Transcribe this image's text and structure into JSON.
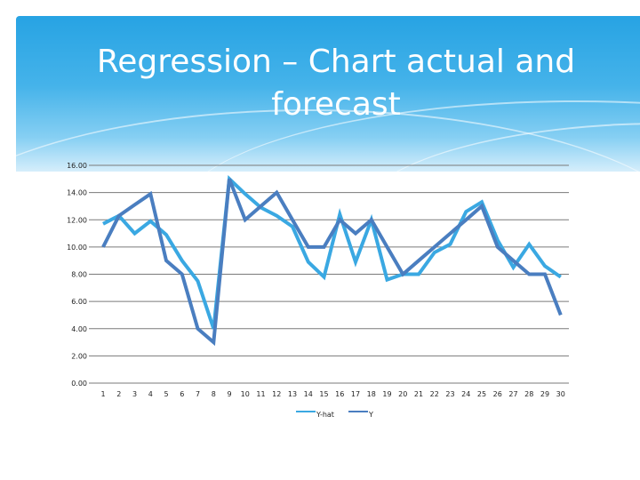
{
  "slide": {
    "title": "Regression – Chart actual and forecast"
  },
  "chart_data": {
    "type": "line",
    "x": [
      1,
      2,
      3,
      4,
      5,
      6,
      7,
      8,
      9,
      10,
      11,
      12,
      13,
      14,
      15,
      16,
      17,
      18,
      19,
      20,
      21,
      22,
      23,
      24,
      25,
      26,
      27,
      28,
      29,
      30
    ],
    "y_ticks": [
      "0.00",
      "2.00",
      "4.00",
      "6.00",
      "8.00",
      "10.00",
      "12.00",
      "14.00",
      "16.00"
    ],
    "ylim": [
      0,
      16
    ],
    "grid": true,
    "legend_position": "bottom",
    "series": [
      {
        "name": "Y-hat",
        "color": "#3aa8e2",
        "values": [
          11.7,
          12.3,
          11.0,
          11.9,
          10.9,
          9.0,
          7.5,
          4.0,
          15.0,
          13.9,
          12.9,
          12.3,
          11.5,
          8.9,
          7.8,
          12.4,
          8.9,
          12.0,
          7.6,
          8.0,
          8.0,
          9.6,
          10.2,
          12.6,
          13.3,
          10.5,
          8.5,
          10.2,
          8.6,
          7.8
        ]
      },
      {
        "name": "Y",
        "color": "#4a7ec0",
        "values": [
          10.0,
          12.3,
          13.1,
          13.9,
          9.0,
          8.0,
          4.0,
          3.0,
          15.0,
          12.0,
          13.0,
          14.0,
          12.0,
          10.0,
          10.0,
          12.0,
          11.0,
          12.0,
          10.0,
          8.0,
          9.0,
          10.0,
          11.0,
          12.0,
          13.0,
          10.0,
          9.0,
          8.0,
          8.0,
          5.0
        ]
      }
    ]
  }
}
